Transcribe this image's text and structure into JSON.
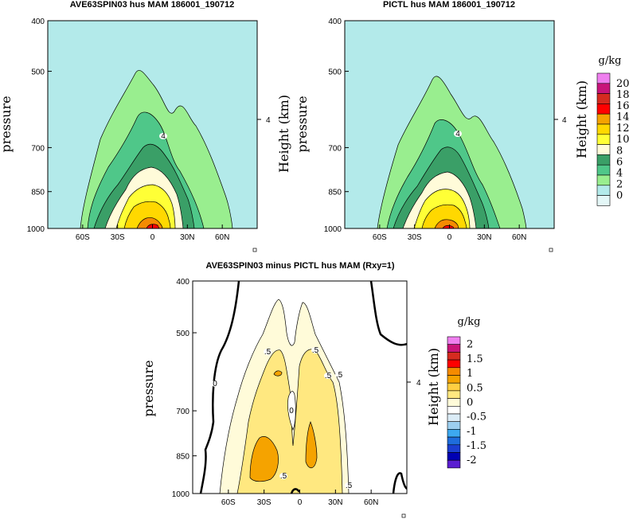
{
  "chart_data": [
    {
      "type": "contour",
      "title": "AVE63SPIN03 hus MAM 186001_190712",
      "xlabel": "",
      "ylabel": "pressure",
      "y2label": "Height (km)",
      "y2ticks": [
        "4"
      ],
      "xticks": [
        "60S",
        "30S",
        "0",
        "30N",
        "60N"
      ],
      "xtick_values": [
        -60,
        -30,
        0,
        30,
        60
      ],
      "yticks": [
        "400",
        "500",
        "700",
        "850",
        "1000"
      ],
      "ytick_values": [
        400,
        500,
        700,
        850,
        1000
      ],
      "xlim": [
        -90,
        90
      ],
      "ylim": [
        1000,
        400
      ],
      "yscale": "log",
      "colorbar": {
        "units": "g/kg",
        "labels": [
          "20",
          "18",
          "16",
          "14",
          "12",
          "10",
          "8",
          "6",
          "4",
          "2",
          "0"
        ],
        "colors": [
          "#ef7fef",
          "#c8147a",
          "#d52b20",
          "#ff0000",
          "#f5a300",
          "#ffd800",
          "#ffff36",
          "#fffbd9",
          "#3a9f67",
          "#4fc789",
          "#99ee8f",
          "#b3eaea",
          "#e4f7f7"
        ]
      },
      "levels": [
        {
          "level": 2,
          "x_left": -60,
          "x_right": 55,
          "top": 490
        },
        {
          "level": 4,
          "x_left": -50,
          "x_right": 35,
          "top": 610
        },
        {
          "level": 6,
          "x_left": -42,
          "x_right": 26,
          "top": 690
        },
        {
          "level": 8,
          "x_left": -32,
          "x_right": 20,
          "top": 770
        },
        {
          "level": 10,
          "x_left": -24,
          "x_right": 16,
          "top": 830
        },
        {
          "level": 12,
          "x_left": -16,
          "x_right": 10,
          "top": 905
        },
        {
          "level": 14,
          "x_left": -6,
          "x_right": 6,
          "top": 970
        }
      ],
      "contour_labels": [
        "4"
      ]
    },
    {
      "type": "contour",
      "title": "PICTL hus MAM 186001_190712",
      "xlabel": "",
      "ylabel": "pressure",
      "y2label": "Height (km)",
      "y2ticks": [
        "4"
      ],
      "xticks": [
        "60S",
        "30S",
        "0",
        "30N",
        "60N"
      ],
      "xtick_values": [
        -60,
        -30,
        0,
        30,
        60
      ],
      "yticks": [
        "400",
        "500",
        "700",
        "850",
        "1000"
      ],
      "ytick_values": [
        400,
        500,
        700,
        850,
        1000
      ],
      "xlim": [
        -90,
        90
      ],
      "ylim": [
        1000,
        400
      ],
      "yscale": "log",
      "levels": [
        {
          "level": 2,
          "x_left": -60,
          "x_right": 55,
          "top": 500
        },
        {
          "level": 4,
          "x_left": -48,
          "x_right": 35,
          "top": 615
        },
        {
          "level": 6,
          "x_left": -40,
          "x_right": 25,
          "top": 700
        },
        {
          "level": 8,
          "x_left": -30,
          "x_right": 20,
          "top": 780
        },
        {
          "level": 10,
          "x_left": -22,
          "x_right": 16,
          "top": 845
        },
        {
          "level": 12,
          "x_left": -14,
          "x_right": 10,
          "top": 920
        },
        {
          "level": 14,
          "x_left": -5,
          "x_right": 5,
          "top": 975
        }
      ],
      "contour_labels": [
        "4"
      ]
    },
    {
      "type": "contour",
      "title": "AVE63SPIN03 minus PICTL hus MAM (Rxy=1)",
      "xlabel": "",
      "ylabel": "pressure",
      "y2label": "Height (km)",
      "y2ticks": [
        "4"
      ],
      "xticks": [
        "60S",
        "30S",
        "0",
        "30N",
        "60N"
      ],
      "xtick_values": [
        -60,
        -30,
        0,
        30,
        60
      ],
      "yticks": [
        "400",
        "500",
        "700",
        "850",
        "1000"
      ],
      "ytick_values": [
        400,
        500,
        700,
        850,
        1000
      ],
      "xlim": [
        -90,
        90
      ],
      "ylim": [
        1000,
        400
      ],
      "yscale": "log",
      "colorbar": {
        "units": "g/kg",
        "labels": [
          "2",
          "1.5",
          "1",
          "0.5",
          "0",
          "-0.5",
          "-1",
          "-1.5",
          "-2"
        ],
        "colors": [
          "#ef7fef",
          "#c8147a",
          "#d52b20",
          "#ff0000",
          "#f58b00",
          "#f5a300",
          "#ffcf42",
          "#ffe880",
          "#fffbd9",
          "#ffffff",
          "#dbecf7",
          "#9ccff0",
          "#3da9f0",
          "#1e6ddc",
          "#1b3ed1",
          "#0000b3",
          "#5b1ed1"
        ]
      },
      "levels": [
        {
          "level": 0.2,
          "x_left": -40,
          "x_right": 42,
          "top": 445
        },
        {
          "level": 0.4,
          "x_left": -38,
          "x_right": 38,
          "top": 540
        },
        {
          "level": 0.6,
          "x_left": -34,
          "x_right": 24,
          "top": 700
        },
        {
          "level": 0.8,
          "x_left": -32,
          "x_right": 22,
          "top": 800
        }
      ],
      "contour_labels": [
        "0",
        "0",
        ".5",
        ".5",
        ".5",
        ".5",
        ".5",
        ".5"
      ]
    }
  ]
}
